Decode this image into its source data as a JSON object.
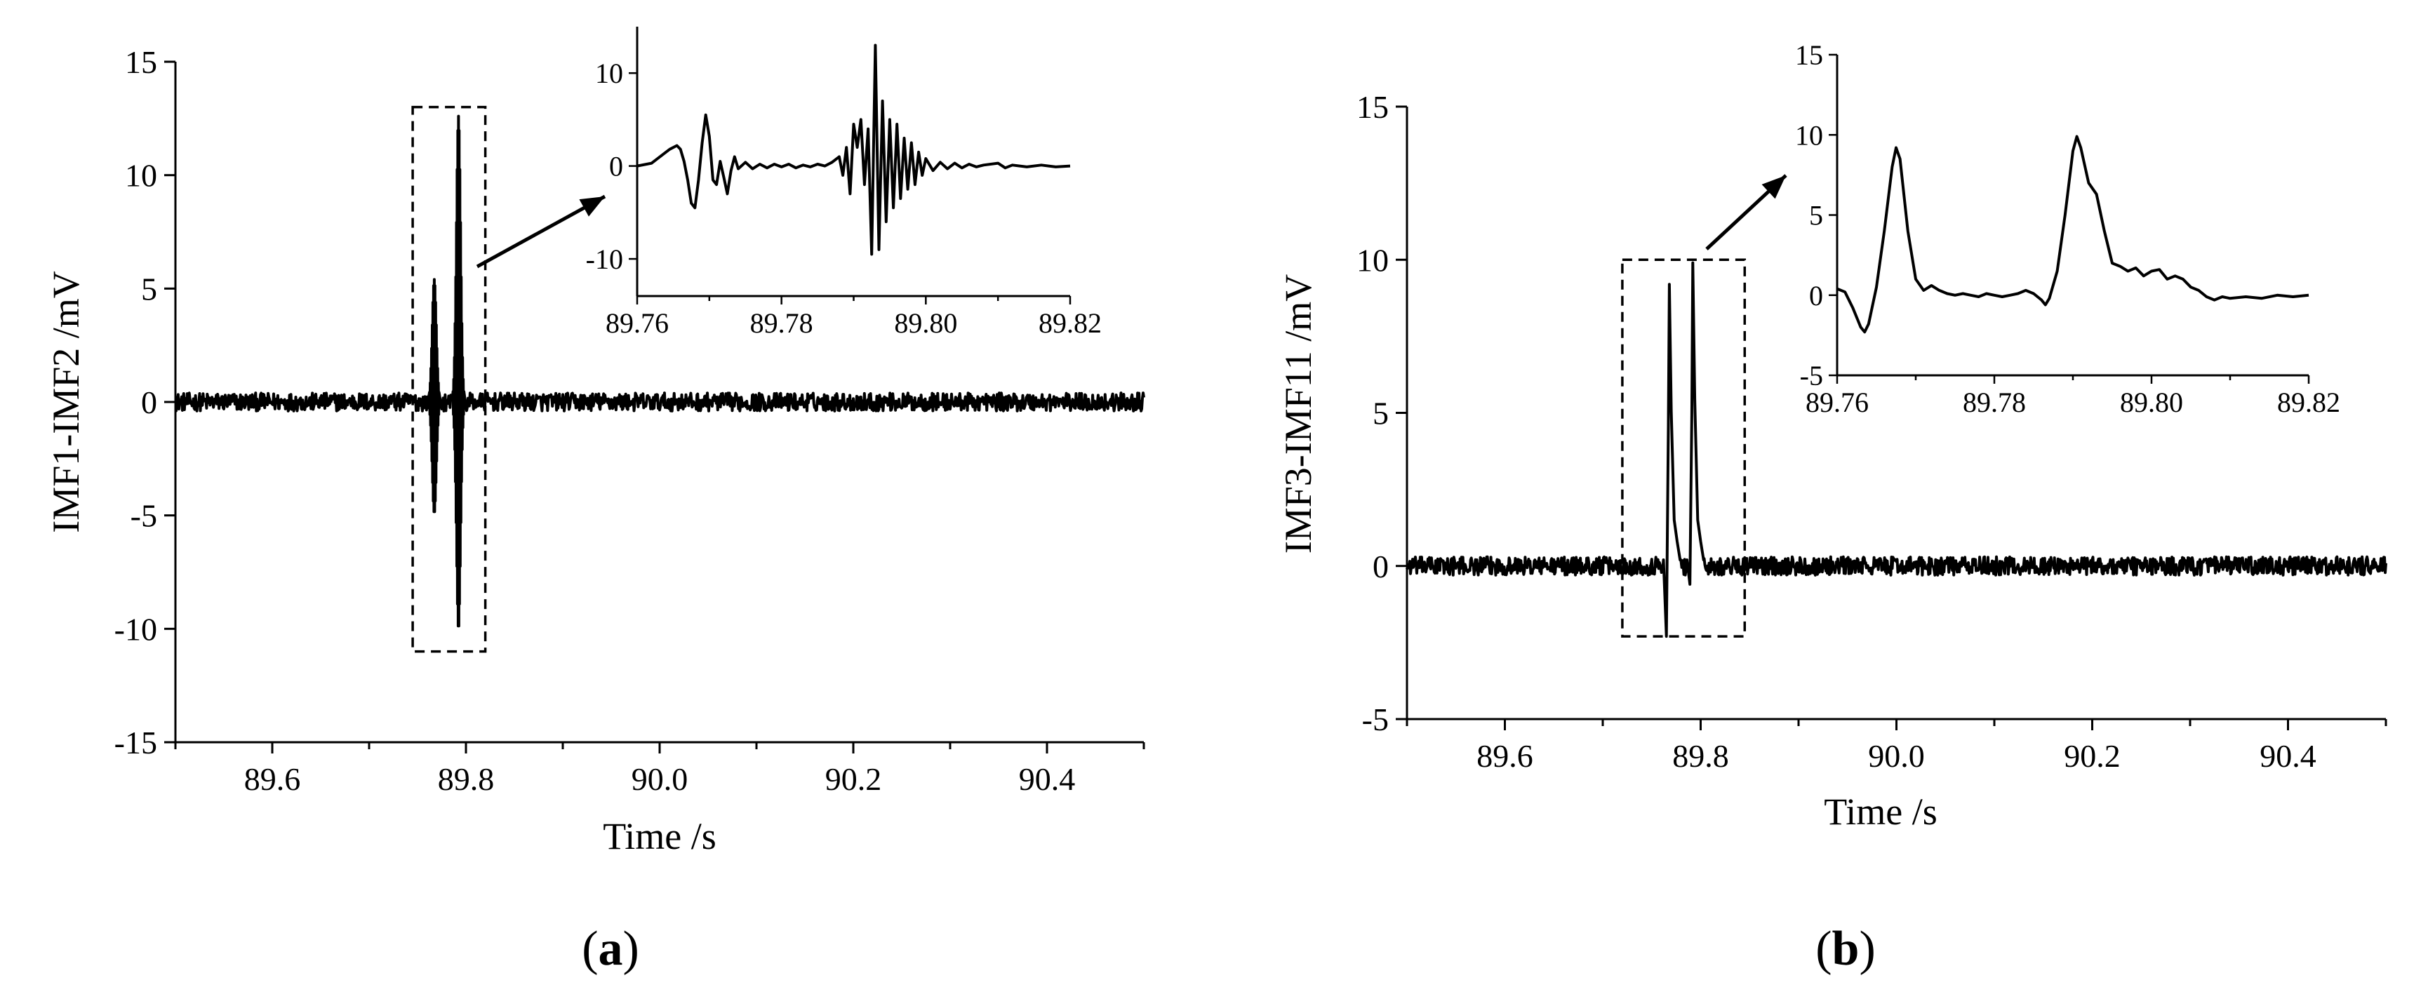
{
  "chart_data": [
    {
      "type": "line",
      "panel_label": "(a)",
      "panel_label_parts": {
        "open": "(",
        "letter": "a",
        "close": ")"
      },
      "xlabel": "Time /s",
      "ylabel": "IMF1-IMF2 /mV",
      "xlim": [
        89.5,
        90.5
      ],
      "ylim": [
        -15,
        15
      ],
      "xticks": [
        89.6,
        89.8,
        90.0,
        90.2,
        90.4
      ],
      "xtick_labels": [
        "89.6",
        "89.8",
        "90.0",
        "90.2",
        "90.4"
      ],
      "yticks": [
        -15,
        -10,
        -5,
        0,
        5,
        10,
        15
      ],
      "ytick_labels": [
        "-15",
        "-10",
        "-5",
        "0",
        "5",
        "10",
        "15"
      ],
      "grid": false,
      "series": [
        {
          "noise_amplitude": 0.4,
          "events": [
            {
              "x": 89.768,
              "peak": 5.4,
              "trough": -4.9
            },
            {
              "x": 89.793,
              "peak": 12.6,
              "trough": -10.0
            }
          ]
        }
      ],
      "highlight_box": {
        "x": [
          89.745,
          89.82
        ],
        "y": [
          -11,
          13
        ]
      },
      "inset": {
        "xlim": [
          89.76,
          89.82
        ],
        "ylim": [
          -14,
          15
        ],
        "xticks": [
          89.76,
          89.78,
          89.8,
          89.82
        ],
        "xtick_labels": [
          "89.76",
          "89.78",
          "89.80",
          "89.82"
        ],
        "yticks": [
          -10,
          0,
          10
        ],
        "ytick_labels": [
          "-10",
          "0",
          "10"
        ],
        "points": [
          [
            89.76,
            0
          ],
          [
            89.762,
            0.3
          ],
          [
            89.7635,
            1.2
          ],
          [
            89.7645,
            1.8
          ],
          [
            89.7655,
            2.2
          ],
          [
            89.766,
            1.8
          ],
          [
            89.7665,
            0.5
          ],
          [
            89.767,
            -1.5
          ],
          [
            89.7675,
            -4.0
          ],
          [
            89.768,
            -4.5
          ],
          [
            89.7685,
            -1.5
          ],
          [
            89.769,
            2.5
          ],
          [
            89.7695,
            5.5
          ],
          [
            89.77,
            3.2
          ],
          [
            89.7705,
            -1.5
          ],
          [
            89.771,
            -2.0
          ],
          [
            89.7715,
            0.5
          ],
          [
            89.772,
            -1.2
          ],
          [
            89.7725,
            -3.0
          ],
          [
            89.773,
            -0.5
          ],
          [
            89.7735,
            1.0
          ],
          [
            89.774,
            -0.3
          ],
          [
            89.775,
            0.4
          ],
          [
            89.776,
            -0.3
          ],
          [
            89.777,
            0.2
          ],
          [
            89.778,
            -0.2
          ],
          [
            89.779,
            0.2
          ],
          [
            89.78,
            -0.1
          ],
          [
            89.781,
            0.2
          ],
          [
            89.782,
            -0.2
          ],
          [
            89.783,
            0.1
          ],
          [
            89.784,
            -0.1
          ],
          [
            89.785,
            0.2
          ],
          [
            89.786,
            0.0
          ],
          [
            89.787,
            0.4
          ],
          [
            89.788,
            1.0
          ],
          [
            89.7885,
            -1.0
          ],
          [
            89.789,
            2.0
          ],
          [
            89.7895,
            -3.0
          ],
          [
            89.79,
            4.5
          ],
          [
            89.7905,
            2.0
          ],
          [
            89.791,
            5.0
          ],
          [
            89.7915,
            -2.0
          ],
          [
            89.792,
            4.0
          ],
          [
            89.7925,
            -9.5
          ],
          [
            89.793,
            13.0
          ],
          [
            89.7935,
            -9.0
          ],
          [
            89.794,
            7.0
          ],
          [
            89.7945,
            -6.0
          ],
          [
            89.795,
            5.0
          ],
          [
            89.7955,
            -4.5
          ],
          [
            89.796,
            4.5
          ],
          [
            89.7965,
            -3.5
          ],
          [
            89.797,
            3.0
          ],
          [
            89.7975,
            -2.5
          ],
          [
            89.798,
            2.5
          ],
          [
            89.7985,
            -2.0
          ],
          [
            89.799,
            1.5
          ],
          [
            89.7995,
            -1.0
          ],
          [
            89.8,
            0.8
          ],
          [
            89.801,
            -0.5
          ],
          [
            89.802,
            0.4
          ],
          [
            89.803,
            -0.3
          ],
          [
            89.804,
            0.3
          ],
          [
            89.805,
            -0.2
          ],
          [
            89.806,
            0.2
          ],
          [
            89.807,
            -0.1
          ],
          [
            89.808,
            0.1
          ],
          [
            89.81,
            0.3
          ],
          [
            89.811,
            -0.2
          ],
          [
            89.812,
            0.1
          ],
          [
            89.814,
            -0.1
          ],
          [
            89.816,
            0.1
          ],
          [
            89.818,
            -0.1
          ],
          [
            89.82,
            0.0
          ]
        ]
      }
    },
    {
      "type": "line",
      "panel_label": "(b)",
      "panel_label_parts": {
        "open": "(",
        "letter": "b",
        "close": ")"
      },
      "xlabel": "Time /s",
      "ylabel": "IMF3-IMF11 /mV",
      "xlim": [
        89.5,
        90.5
      ],
      "ylim": [
        -5,
        15
      ],
      "xticks": [
        89.6,
        89.8,
        90.0,
        90.2,
        90.4
      ],
      "xtick_labels": [
        "89.6",
        "89.8",
        "90.0",
        "90.2",
        "90.4"
      ],
      "yticks": [
        -5,
        0,
        5,
        10,
        15
      ],
      "ytick_labels": [
        "-5",
        "0",
        "5",
        "10",
        "15"
      ],
      "grid": false,
      "series": [
        {
          "noise_amplitude": 0.3,
          "events": [
            {
              "x": 89.768,
              "peak": 9.2,
              "trough": -2.3
            },
            {
              "x": 89.792,
              "peak": 9.9,
              "trough": -0.6
            }
          ]
        }
      ],
      "highlight_box": {
        "x": [
          89.72,
          89.845
        ],
        "y": [
          -2.3,
          10
        ]
      },
      "inset": {
        "xlim": [
          89.76,
          89.82
        ],
        "ylim": [
          -5,
          15
        ],
        "xticks": [
          89.76,
          89.78,
          89.8,
          89.82
        ],
        "xtick_labels": [
          "89.76",
          "89.78",
          "89.80",
          "89.82"
        ],
        "yticks": [
          -5,
          0,
          5,
          10,
          15
        ],
        "ytick_labels": [
          "-5",
          "0",
          "5",
          "10",
          "15"
        ],
        "points": [
          [
            89.76,
            0.4
          ],
          [
            89.761,
            0.2
          ],
          [
            89.762,
            -0.8
          ],
          [
            89.763,
            -2.0
          ],
          [
            89.7635,
            -2.3
          ],
          [
            89.764,
            -1.8
          ],
          [
            89.765,
            0.5
          ],
          [
            89.766,
            4.0
          ],
          [
            89.767,
            8.0
          ],
          [
            89.7675,
            9.2
          ],
          [
            89.768,
            8.5
          ],
          [
            89.769,
            4.0
          ],
          [
            89.77,
            1.0
          ],
          [
            89.771,
            0.3
          ],
          [
            89.772,
            0.6
          ],
          [
            89.773,
            0.3
          ],
          [
            89.774,
            0.1
          ],
          [
            89.775,
            0.0
          ],
          [
            89.776,
            0.1
          ],
          [
            89.777,
            0.0
          ],
          [
            89.778,
            -0.1
          ],
          [
            89.779,
            0.1
          ],
          [
            89.78,
            0.0
          ],
          [
            89.781,
            -0.1
          ],
          [
            89.782,
            0.0
          ],
          [
            89.783,
            0.1
          ],
          [
            89.784,
            0.3
          ],
          [
            89.785,
            0.1
          ],
          [
            89.786,
            -0.3
          ],
          [
            89.7865,
            -0.6
          ],
          [
            89.787,
            -0.2
          ],
          [
            89.788,
            1.5
          ],
          [
            89.789,
            5.0
          ],
          [
            89.79,
            9.0
          ],
          [
            89.7905,
            9.9
          ],
          [
            89.791,
            9.2
          ],
          [
            89.792,
            7.0
          ],
          [
            89.793,
            6.3
          ],
          [
            89.794,
            4.0
          ],
          [
            89.795,
            2.0
          ],
          [
            89.796,
            1.8
          ],
          [
            89.797,
            1.5
          ],
          [
            89.798,
            1.7
          ],
          [
            89.799,
            1.2
          ],
          [
            89.8,
            1.5
          ],
          [
            89.801,
            1.6
          ],
          [
            89.802,
            1.0
          ],
          [
            89.803,
            1.2
          ],
          [
            89.804,
            1.0
          ],
          [
            89.805,
            0.5
          ],
          [
            89.806,
            0.3
          ],
          [
            89.807,
            -0.1
          ],
          [
            89.808,
            -0.3
          ],
          [
            89.809,
            -0.1
          ],
          [
            89.81,
            -0.2
          ],
          [
            89.812,
            -0.1
          ],
          [
            89.814,
            -0.2
          ],
          [
            89.816,
            0.0
          ],
          [
            89.818,
            -0.1
          ],
          [
            89.82,
            0.0
          ]
        ]
      }
    }
  ]
}
